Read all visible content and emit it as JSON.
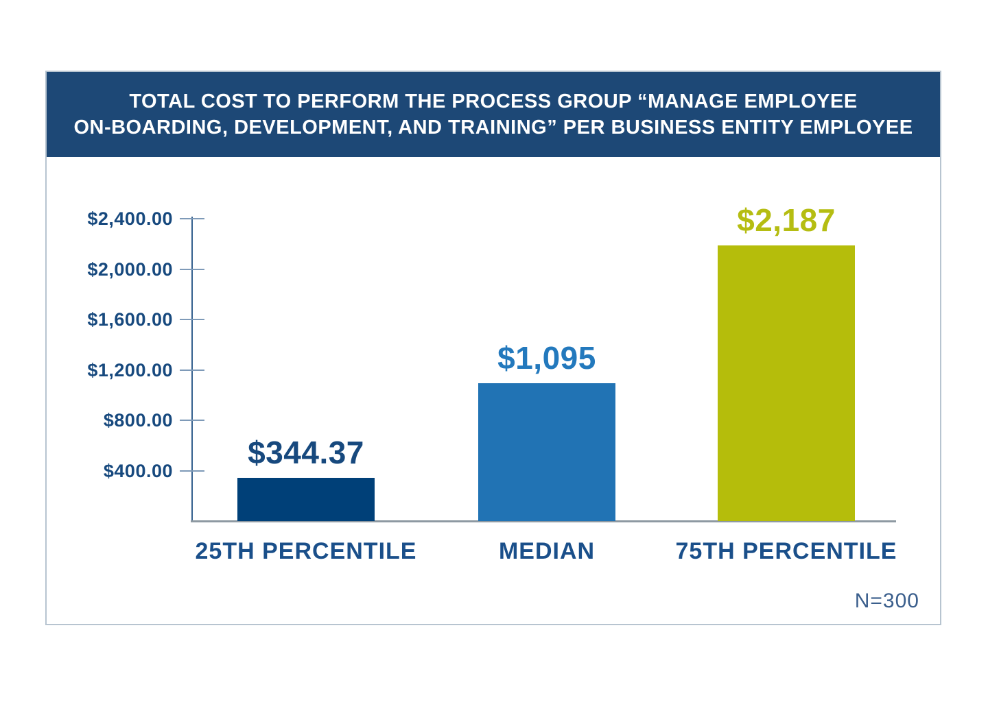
{
  "header": {
    "title_lines": [
      "TOTAL COST TO PERFORM THE PROCESS GROUP “MANAGE EMPLOYEE",
      "ON-BOARDING, DEVELOPMENT, AND TRAINING” PER BUSINESS ENTITY EMPLOYEE"
    ],
    "bg_color": "#1d4876",
    "text_color": "#ffffff"
  },
  "chart_data": {
    "type": "bar",
    "title": "TOTAL COST TO PERFORM THE PROCESS GROUP “MANAGE EMPLOYEE ON-BOARDING, DEVELOPMENT, AND TRAINING” PER BUSINESS ENTITY EMPLOYEE",
    "categories": [
      "25TH PERCENTILE",
      "MEDIAN",
      "75TH PERCENTILE"
    ],
    "values": [
      344.37,
      1095,
      2187
    ],
    "value_labels": [
      "$344.37",
      "$1,095",
      "$2,187"
    ],
    "bar_colors": [
      "#004078",
      "#2173b4",
      "#b5bd0b"
    ],
    "value_label_colors": [
      "#17497e",
      "#2379bd",
      "#b5bd12"
    ],
    "category_label_color": "#1a4f8a",
    "y_ticks": [
      "$2,400.00",
      "$2,000.00",
      "$1,600.00",
      "$1,200.00",
      "$800.00",
      "$400.00"
    ],
    "y_tick_values": [
      2400,
      2000,
      1600,
      1200,
      800,
      400
    ],
    "ylim": [
      0,
      2400
    ],
    "xlabel": "",
    "ylabel": "",
    "grid": false,
    "legend": "none",
    "sample_size": "N=300"
  }
}
